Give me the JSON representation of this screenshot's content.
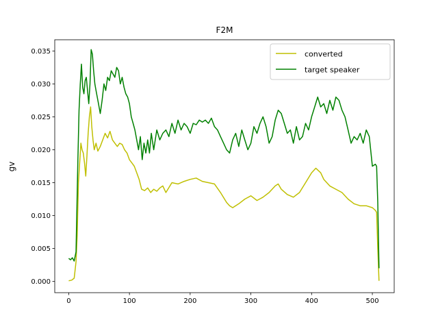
{
  "chart_data": {
    "type": "line",
    "title": "F2M",
    "xlabel": "",
    "ylabel": "gv",
    "xlim": [
      -23,
      536
    ],
    "ylim": [
      -0.0017,
      0.0367
    ],
    "x_ticks": [
      0,
      100,
      200,
      300,
      400,
      500
    ],
    "y_ticks": [
      0.0,
      0.005,
      0.01,
      0.015,
      0.02,
      0.025,
      0.03,
      0.035
    ],
    "y_tick_decimals": 3,
    "grid": false,
    "legend_position": "upper right",
    "series": [
      {
        "name": "converted",
        "color": "#bfbf00",
        "x": [
          0,
          5,
          9,
          12,
          14,
          16,
          18,
          20,
          22,
          24,
          26,
          28,
          30,
          32,
          34,
          36,
          38,
          40,
          42,
          45,
          48,
          52,
          56,
          60,
          64,
          68,
          72,
          76,
          80,
          84,
          88,
          92,
          96,
          100,
          104,
          108,
          112,
          116,
          120,
          125,
          130,
          135,
          140,
          145,
          150,
          155,
          160,
          170,
          180,
          190,
          200,
          210,
          220,
          230,
          240,
          250,
          260,
          265,
          270,
          280,
          290,
          300,
          310,
          320,
          330,
          340,
          345,
          350,
          360,
          370,
          380,
          390,
          400,
          407,
          415,
          420,
          430,
          440,
          450,
          460,
          470,
          480,
          490,
          500,
          505,
          507,
          509,
          511
        ],
        "values": [
          0.0001,
          0.0002,
          0.0005,
          0.003,
          0.007,
          0.015,
          0.018,
          0.021,
          0.02,
          0.0195,
          0.018,
          0.016,
          0.019,
          0.0225,
          0.025,
          0.0265,
          0.0235,
          0.0215,
          0.02,
          0.021,
          0.0198,
          0.0205,
          0.0215,
          0.0225,
          0.0218,
          0.0228,
          0.0215,
          0.021,
          0.0205,
          0.021,
          0.0208,
          0.02,
          0.0195,
          0.0185,
          0.018,
          0.0175,
          0.0165,
          0.0155,
          0.014,
          0.0138,
          0.0142,
          0.0135,
          0.014,
          0.0137,
          0.0142,
          0.0145,
          0.0135,
          0.015,
          0.0148,
          0.0152,
          0.0155,
          0.0157,
          0.0152,
          0.015,
          0.0148,
          0.0135,
          0.012,
          0.0115,
          0.0112,
          0.0118,
          0.0125,
          0.013,
          0.0123,
          0.0128,
          0.0135,
          0.0145,
          0.0148,
          0.014,
          0.0132,
          0.0128,
          0.0135,
          0.015,
          0.0165,
          0.0172,
          0.0165,
          0.0155,
          0.0145,
          0.014,
          0.0135,
          0.0125,
          0.0118,
          0.0115,
          0.0115,
          0.0112,
          0.0108,
          0.0105,
          0.005,
          0.0001
        ]
      },
      {
        "name": "target speaker",
        "color": "#008000",
        "x": [
          0,
          3,
          6,
          9,
          12,
          15,
          17,
          19,
          21,
          23,
          25,
          27,
          29,
          31,
          33,
          35,
          37,
          39,
          41,
          43,
          45,
          47,
          49,
          52,
          55,
          58,
          61,
          64,
          67,
          70,
          73,
          76,
          79,
          82,
          85,
          88,
          91,
          94,
          97,
          100,
          103,
          106,
          109,
          112,
          115,
          118,
          121,
          124,
          127,
          130,
          133,
          136,
          140,
          145,
          150,
          155,
          160,
          165,
          170,
          175,
          180,
          185,
          190,
          195,
          200,
          205,
          210,
          215,
          220,
          225,
          230,
          235,
          240,
          245,
          250,
          255,
          260,
          265,
          270,
          275,
          280,
          285,
          290,
          295,
          300,
          305,
          310,
          315,
          320,
          325,
          330,
          335,
          340,
          345,
          350,
          355,
          360,
          365,
          370,
          375,
          380,
          385,
          390,
          395,
          400,
          405,
          410,
          415,
          420,
          425,
          430,
          435,
          440,
          445,
          450,
          455,
          460,
          465,
          470,
          475,
          480,
          485,
          490,
          495,
          500,
          505,
          507,
          509,
          511
        ],
        "values": [
          0.0035,
          0.0033,
          0.0036,
          0.0031,
          0.0045,
          0.018,
          0.026,
          0.03,
          0.033,
          0.0295,
          0.0285,
          0.0305,
          0.031,
          0.029,
          0.027,
          0.03,
          0.0352,
          0.0345,
          0.032,
          0.03,
          0.029,
          0.028,
          0.027,
          0.0255,
          0.0275,
          0.03,
          0.029,
          0.031,
          0.0305,
          0.032,
          0.0315,
          0.031,
          0.0325,
          0.032,
          0.03,
          0.031,
          0.0295,
          0.0285,
          0.028,
          0.027,
          0.025,
          0.024,
          0.023,
          0.0215,
          0.02,
          0.022,
          0.0185,
          0.021,
          0.0195,
          0.0215,
          0.0195,
          0.0225,
          0.02,
          0.023,
          0.0215,
          0.0225,
          0.023,
          0.022,
          0.024,
          0.0225,
          0.0245,
          0.023,
          0.024,
          0.0235,
          0.0225,
          0.024,
          0.0238,
          0.0245,
          0.0242,
          0.0245,
          0.024,
          0.0248,
          0.0235,
          0.023,
          0.022,
          0.021,
          0.02,
          0.0195,
          0.0215,
          0.0225,
          0.0205,
          0.023,
          0.0215,
          0.02,
          0.021,
          0.0235,
          0.0225,
          0.024,
          0.025,
          0.0235,
          0.021,
          0.022,
          0.0245,
          0.026,
          0.0255,
          0.024,
          0.0225,
          0.023,
          0.021,
          0.0235,
          0.0215,
          0.022,
          0.024,
          0.023,
          0.025,
          0.0265,
          0.028,
          0.0265,
          0.027,
          0.0255,
          0.0275,
          0.026,
          0.028,
          0.0275,
          0.026,
          0.025,
          0.023,
          0.021,
          0.022,
          0.0215,
          0.0225,
          0.021,
          0.023,
          0.022,
          0.0175,
          0.0178,
          0.0175,
          0.012,
          0.002
        ]
      }
    ]
  }
}
